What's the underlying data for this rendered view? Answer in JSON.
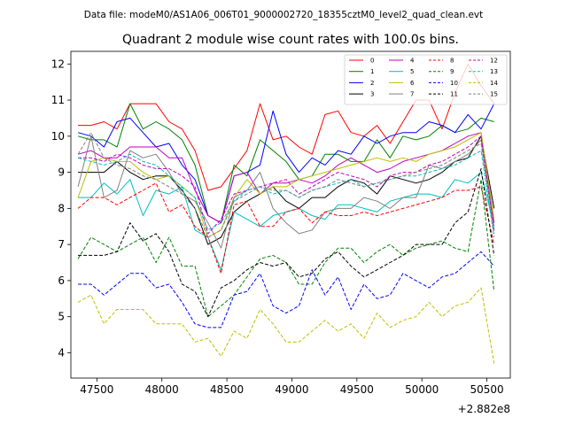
{
  "header": {
    "file_text": "Data file: modeM0/AS1A06_006T01_9000002720_18355cztM0_level2_quad_clean.evt"
  },
  "chart_data": {
    "type": "line",
    "title": "Quadrant 2 module wise count rates with 100.0s bins.",
    "xlabel": "",
    "ylabel": "",
    "x_offset_text": "+2.882e8",
    "xlim": [
      47300,
      50680
    ],
    "ylim": [
      3.3,
      12.35
    ],
    "x_ticks": [
      47500,
      48000,
      48500,
      49000,
      49500,
      50000,
      50500
    ],
    "x_tick_labels": [
      "47500",
      "48000",
      "48500",
      "49000",
      "49500",
      "50000",
      "50500"
    ],
    "y_ticks": [
      4,
      5,
      6,
      7,
      8,
      9,
      10,
      11,
      12
    ],
    "y_tick_labels": [
      "4",
      "5",
      "6",
      "7",
      "8",
      "9",
      "10",
      "11",
      "12"
    ],
    "grid": false,
    "legend_position": "top-right",
    "x": [
      47355,
      47455,
      47555,
      47655,
      47755,
      47855,
      47955,
      48055,
      48155,
      48255,
      48355,
      48455,
      48555,
      48655,
      48755,
      48855,
      48955,
      49055,
      49155,
      49255,
      49355,
      49455,
      49555,
      49655,
      49755,
      49855,
      49955,
      50055,
      50155,
      50255,
      50355,
      50455,
      50555
    ],
    "series": [
      {
        "name": "0",
        "color": "#ff0000",
        "dash": "solid",
        "values": [
          10.3,
          10.3,
          10.4,
          10.2,
          10.9,
          10.9,
          10.9,
          10.4,
          10.2,
          9.6,
          8.5,
          8.6,
          9.1,
          9.6,
          10.9,
          9.9,
          10.0,
          9.7,
          9.5,
          10.6,
          10.7,
          10.1,
          10.0,
          10.3,
          9.8,
          10.4,
          11.0,
          11.0,
          10.2,
          11.2,
          12.0,
          11.4,
          10.9
        ]
      },
      {
        "name": "1",
        "color": "#008000",
        "dash": "solid",
        "values": [
          10.0,
          9.9,
          9.9,
          9.7,
          10.9,
          10.2,
          10.4,
          10.2,
          9.9,
          9.2,
          7.8,
          7.6,
          9.2,
          8.9,
          9.9,
          9.6,
          9.3,
          8.8,
          8.9,
          9.5,
          9.5,
          9.3,
          9.3,
          9.9,
          9.4,
          10.0,
          9.9,
          10.0,
          10.3,
          10.1,
          10.2,
          10.5,
          10.4
        ]
      },
      {
        "name": "2",
        "color": "#0000ff",
        "dash": "solid",
        "values": [
          10.1,
          10.0,
          9.7,
          10.4,
          10.5,
          10.1,
          9.7,
          9.8,
          9.2,
          8.8,
          7.8,
          7.6,
          8.9,
          9.0,
          9.2,
          10.7,
          9.5,
          9.0,
          9.4,
          9.2,
          9.6,
          9.5,
          10.0,
          9.8,
          10.0,
          10.1,
          10.1,
          10.4,
          10.3,
          10.1,
          10.6,
          10.2,
          10.9
        ]
      },
      {
        "name": "3",
        "color": "#000000",
        "dash": "solid",
        "values": [
          9.0,
          9.0,
          9.0,
          9.3,
          9.0,
          8.8,
          8.9,
          8.9,
          8.5,
          8.0,
          7.0,
          7.2,
          7.9,
          8.2,
          8.4,
          8.6,
          8.2,
          8.0,
          8.3,
          8.3,
          8.6,
          8.8,
          8.7,
          8.4,
          8.9,
          8.8,
          8.7,
          8.8,
          9.0,
          9.3,
          9.4,
          10.0,
          8.0
        ]
      },
      {
        "name": "4",
        "color": "#bf00bf",
        "dash": "solid",
        "values": [
          9.5,
          9.6,
          9.4,
          9.4,
          9.7,
          9.7,
          9.7,
          9.4,
          9.4,
          8.5,
          7.8,
          7.6,
          8.9,
          9.0,
          8.4,
          8.7,
          8.7,
          8.8,
          8.7,
          8.9,
          9.2,
          9.4,
          9.2,
          9.0,
          9.1,
          9.3,
          9.4,
          9.5,
          9.6,
          9.8,
          10.0,
          10.1,
          7.6
        ]
      },
      {
        "name": "5",
        "color": "#00bfbf",
        "dash": "solid",
        "values": [
          8.3,
          8.3,
          8.7,
          8.4,
          8.8,
          7.8,
          8.5,
          8.4,
          8.6,
          7.4,
          7.2,
          6.3,
          7.9,
          7.7,
          7.5,
          7.8,
          7.9,
          8.0,
          7.8,
          7.7,
          8.1,
          8.1,
          8.0,
          7.9,
          8.2,
          8.3,
          8.4,
          8.4,
          8.3,
          8.8,
          8.7,
          9.0,
          7.5
        ]
      },
      {
        "name": "6",
        "color": "#bfbf00",
        "dash": "solid",
        "values": [
          8.3,
          9.3,
          9.4,
          9.3,
          9.3,
          9.0,
          8.8,
          8.9,
          8.6,
          8.3,
          7.2,
          7.4,
          8.3,
          8.8,
          8.4,
          8.6,
          8.6,
          8.8,
          8.9,
          9.0,
          9.1,
          9.2,
          9.3,
          9.4,
          9.3,
          9.4,
          9.3,
          9.5,
          9.6,
          9.7,
          9.9,
          10.1,
          7.7
        ]
      },
      {
        "name": "7",
        "color": "#808080",
        "dash": "solid",
        "values": [
          8.6,
          10.0,
          8.3,
          8.5,
          9.6,
          9.4,
          9.5,
          9.0,
          8.4,
          8.2,
          7.6,
          6.9,
          8.3,
          8.5,
          9.0,
          8.0,
          7.6,
          7.3,
          7.4,
          7.9,
          8.0,
          8.0,
          8.3,
          8.2,
          8.0,
          8.3,
          8.3,
          9.2,
          9.1,
          9.3,
          9.5,
          9.9,
          7.4
        ]
      },
      {
        "name": "8",
        "color": "#ff0000",
        "dash": "dashed",
        "values": [
          8.0,
          8.3,
          8.3,
          8.1,
          8.3,
          8.5,
          8.7,
          7.9,
          8.1,
          7.5,
          7.2,
          6.2,
          8.1,
          8.2,
          7.5,
          7.5,
          7.9,
          8.0,
          7.6,
          7.9,
          7.8,
          7.8,
          7.9,
          7.8,
          7.9,
          8.0,
          8.1,
          8.2,
          8.3,
          8.5,
          8.5,
          8.6,
          7.0
        ]
      },
      {
        "name": "9",
        "color": "#008000",
        "dash": "dashed",
        "values": [
          6.6,
          7.2,
          7.0,
          6.8,
          7.0,
          7.2,
          6.5,
          7.2,
          6.4,
          6.4,
          5.0,
          5.3,
          5.6,
          6.1,
          6.6,
          6.7,
          6.5,
          5.9,
          5.9,
          6.5,
          6.9,
          6.9,
          6.5,
          6.8,
          7.0,
          6.7,
          6.9,
          7.0,
          7.1,
          6.9,
          6.8,
          8.8,
          5.7
        ]
      },
      {
        "name": "10",
        "color": "#0000ff",
        "dash": "dashed",
        "values": [
          5.9,
          5.9,
          5.6,
          5.9,
          6.2,
          6.2,
          5.8,
          5.9,
          5.4,
          4.8,
          4.7,
          4.7,
          5.6,
          5.7,
          6.2,
          5.3,
          5.1,
          5.3,
          6.3,
          5.6,
          6.1,
          5.2,
          5.9,
          5.5,
          5.6,
          6.2,
          6.0,
          5.8,
          6.1,
          6.2,
          6.5,
          6.8,
          6.4
        ]
      },
      {
        "name": "11",
        "color": "#000000",
        "dash": "dashed",
        "values": [
          6.7,
          6.7,
          6.7,
          6.8,
          7.6,
          7.1,
          7.3,
          6.8,
          5.9,
          5.7,
          5.0,
          5.8,
          6.0,
          6.3,
          6.5,
          6.4,
          6.5,
          6.1,
          6.2,
          6.6,
          6.8,
          6.4,
          6.1,
          6.3,
          6.5,
          6.7,
          7.0,
          7.0,
          7.0,
          7.6,
          7.9,
          9.1,
          6.7
        ]
      },
      {
        "name": "12",
        "color": "#bf00bf",
        "dash": "dashed",
        "values": [
          9.4,
          9.4,
          9.3,
          9.5,
          9.4,
          9.2,
          9.1,
          9.1,
          8.9,
          8.6,
          7.3,
          7.7,
          8.4,
          8.5,
          8.6,
          8.7,
          8.8,
          8.4,
          8.6,
          8.8,
          9.0,
          8.9,
          8.8,
          8.6,
          8.9,
          9.0,
          9.0,
          9.2,
          9.3,
          9.5,
          9.7,
          10.0,
          7.4
        ]
      },
      {
        "name": "13",
        "color": "#00bfbf",
        "dash": "dashed",
        "values": [
          9.4,
          9.3,
          9.2,
          9.3,
          9.5,
          9.3,
          9.2,
          8.9,
          8.6,
          8.3,
          7.4,
          7.6,
          8.2,
          8.5,
          8.6,
          8.4,
          8.5,
          8.3,
          8.5,
          8.6,
          8.7,
          8.8,
          8.6,
          8.7,
          8.8,
          8.9,
          8.9,
          9.0,
          9.1,
          9.2,
          9.4,
          9.6,
          7.2
        ]
      },
      {
        "name": "14",
        "color": "#bfbf00",
        "dash": "dashed",
        "values": [
          5.4,
          5.6,
          4.8,
          5.2,
          5.2,
          5.2,
          4.8,
          4.8,
          4.8,
          4.3,
          4.4,
          3.9,
          4.6,
          4.4,
          5.2,
          4.8,
          4.3,
          4.3,
          4.6,
          4.9,
          4.6,
          4.8,
          4.4,
          5.1,
          4.7,
          4.9,
          5.0,
          5.4,
          5.0,
          5.3,
          5.4,
          5.8,
          3.7
        ]
      },
      {
        "name": "15",
        "color": "#808080",
        "dash": "dashed",
        "values": [
          9.5,
          10.1,
          9.4,
          9.2,
          9.1,
          8.9,
          8.8,
          8.6,
          8.4,
          8.0,
          7.2,
          7.4,
          8.2,
          8.4,
          8.6,
          8.5,
          8.5,
          8.3,
          8.5,
          8.6,
          8.8,
          8.7,
          8.6,
          8.7,
          8.8,
          8.9,
          9.0,
          9.1,
          9.2,
          9.4,
          9.6,
          9.8,
          7.3
        ]
      }
    ]
  }
}
